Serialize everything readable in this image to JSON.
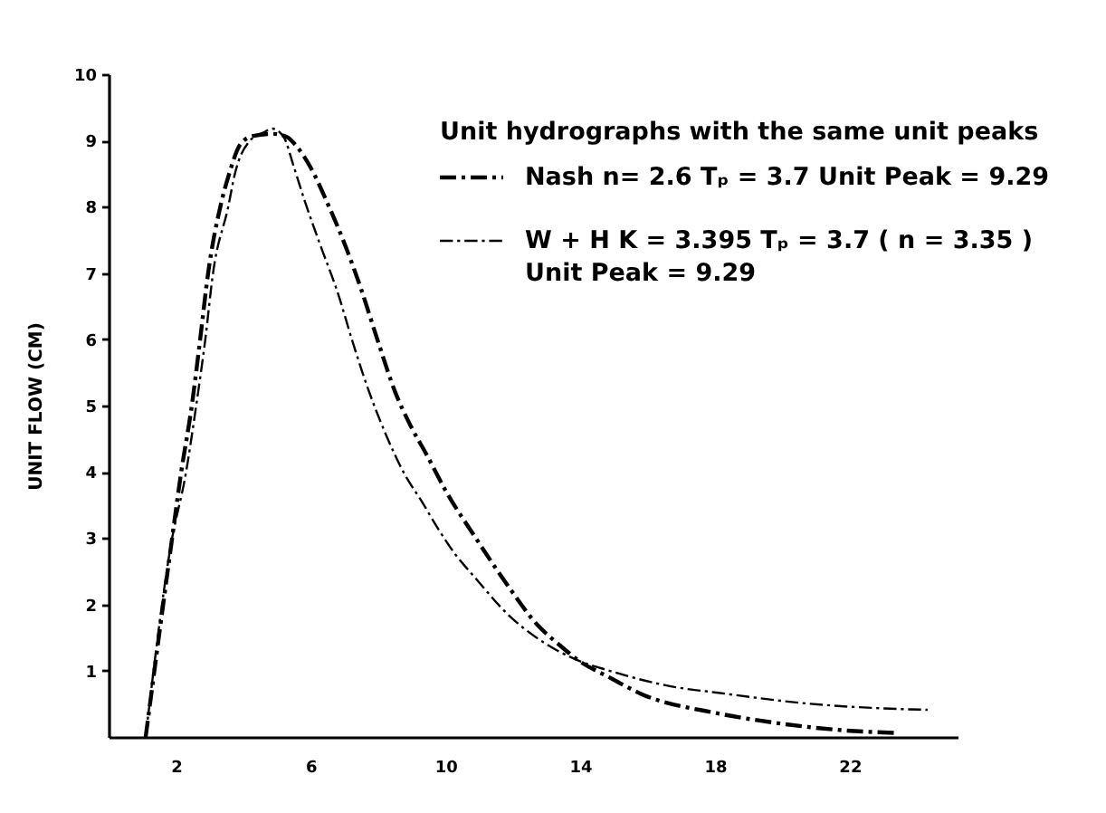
{
  "chart_data": {
    "type": "line",
    "ylabel": "UNIT FLOW (CM)",
    "legend_title": "Unit hydrographs with the same unit peaks",
    "legend": "top right",
    "line_style": "dashed",
    "grid": false,
    "xlim": [
      0,
      25.2
    ],
    "xticks": [
      2,
      6,
      10,
      14,
      18,
      22
    ],
    "ylim": [
      0,
      10
    ],
    "yticks": [
      1,
      2,
      3,
      4,
      5,
      6,
      7,
      8,
      9,
      10
    ],
    "series": [
      {
        "name": "Nash n= 2.6 Tₚ = 3.7 Unit Peak = 9.29",
        "color": "#000000",
        "x": [
          1.1,
          1.88,
          2.15,
          2.47,
          2.72,
          2.96,
          3.32,
          3.58,
          3.92,
          4.3,
          4.9,
          5.3,
          5.6,
          6.0,
          6.5,
          6.99,
          7.5,
          7.97,
          8.51,
          8.96,
          9.45,
          10.0,
          10.9,
          11.8,
          12.73,
          13.4,
          13.96,
          14.86,
          15.85,
          18.04,
          19.83,
          21.82,
          23.42
        ],
        "values": [
          0,
          2.98,
          3.98,
          5.0,
          6.01,
          7.02,
          8.01,
          8.5,
          8.95,
          9.07,
          9.1,
          9.05,
          8.9,
          8.59,
          8.05,
          7.46,
          6.75,
          6.01,
          5.2,
          4.7,
          4.25,
          3.72,
          3.0,
          2.32,
          1.69,
          1.38,
          1.15,
          0.9,
          0.64,
          0.36,
          0.21,
          0.1,
          0.06
        ]
      },
      {
        "name": "W + H K = 3.395 Tₚ = 3.7 ( n = 3.35 )\nUnit Peak = 9.29",
        "color": "#000000",
        "x": [
          1.1,
          1.85,
          2.3,
          2.6,
          2.87,
          3.1,
          3.55,
          3.75,
          4.2,
          4.6,
          4.85,
          5.2,
          5.5,
          5.82,
          6.3,
          6.81,
          7.25,
          7.71,
          8.2,
          8.78,
          9.3,
          9.77,
          10.3,
          10.85,
          11.87,
          12.87,
          13.96,
          14.86,
          16.84,
          18.04,
          20.83,
          23.02,
          24.31
        ],
        "values": [
          0,
          2.9,
          4.0,
          5.0,
          6.0,
          7.0,
          8.0,
          8.5,
          9.0,
          9.12,
          9.18,
          9.05,
          8.6,
          8.09,
          7.4,
          6.69,
          5.95,
          5.24,
          4.6,
          3.97,
          3.55,
          3.15,
          2.75,
          2.42,
          1.84,
          1.44,
          1.15,
          1.0,
          0.75,
          0.67,
          0.5,
          0.43,
          0.41
        ]
      }
    ]
  }
}
